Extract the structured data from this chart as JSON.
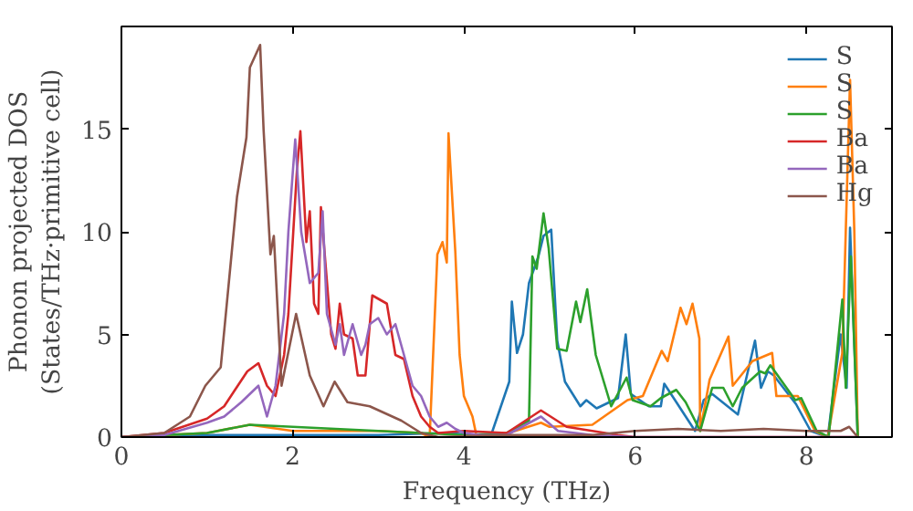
{
  "chart_data": {
    "type": "line",
    "xlabel": "Frequency (THz)",
    "ylabel": "Phonon projected DOS\n(States/THz·primitive cell)",
    "xlim": [
      0,
      9
    ],
    "ylim": [
      0,
      20
    ],
    "xticks": [
      0,
      2,
      4,
      6,
      8
    ],
    "yticks": [
      0,
      5,
      10,
      15
    ],
    "legend": "top right",
    "grid": false,
    "series": [
      {
        "name": "S",
        "color": "#1f77b4",
        "x": [
          0,
          1,
          2,
          3,
          3.8,
          4.1,
          4.31,
          4.53,
          4.56,
          4.62,
          4.69,
          4.76,
          4.87,
          4.93,
          5.02,
          5.09,
          5.18,
          5.36,
          5.43,
          5.55,
          5.8,
          5.89,
          5.95,
          6.16,
          6.3,
          6.34,
          6.45,
          6.7,
          6.8,
          6.9,
          7.2,
          7.4,
          7.47,
          7.55,
          7.62,
          7.88,
          8.05,
          8.25,
          8.4,
          8.47,
          8.51,
          8.6
        ],
        "values": [
          0,
          0.1,
          0.1,
          0.1,
          0.2,
          0.1,
          0,
          2.7,
          6.6,
          4.1,
          5,
          7.5,
          8.8,
          9.8,
          10.1,
          4.7,
          2.7,
          1.5,
          1.8,
          1.4,
          1.9,
          5,
          2.1,
          1.5,
          1.5,
          2.6,
          1.9,
          0.3,
          1.8,
          2.1,
          1.1,
          4.7,
          2.4,
          3.2,
          3.0,
          1.6,
          0.3,
          0,
          5,
          2.4,
          10.2,
          0
        ]
      },
      {
        "name": "S",
        "color": "#ff7f0e",
        "x": [
          0,
          1,
          1.5,
          2,
          2.5,
          3,
          3.5,
          3.6,
          3.69,
          3.75,
          3.8,
          3.82,
          3.9,
          3.95,
          4.0,
          4.1,
          4.15,
          4.3,
          4.6,
          4.9,
          5.0,
          5.5,
          5.91,
          6.09,
          6.31,
          6.38,
          6.53,
          6.6,
          6.67,
          6.75,
          6.76,
          6.87,
          7.09,
          7.14,
          7.37,
          7.6,
          7.65,
          7.9,
          8.1,
          8.25,
          8.42,
          8.51,
          8.56,
          8.6
        ],
        "values": [
          0,
          0.2,
          0.6,
          0.3,
          0.3,
          0.3,
          0.2,
          0,
          8.9,
          9.5,
          8.5,
          14.8,
          9,
          4,
          2,
          1,
          0,
          0,
          0.3,
          0.7,
          0.5,
          0.6,
          1.8,
          2,
          4.2,
          3.7,
          6.3,
          5.5,
          6.5,
          4.8,
          0.3,
          2.8,
          4.9,
          2.5,
          3.7,
          4.1,
          2.0,
          2,
          0.3,
          0,
          4.1,
          17.4,
          10,
          0
        ]
      },
      {
        "name": "S",
        "color": "#2ca02c",
        "x": [
          0,
          1,
          1.5,
          2,
          2.5,
          3,
          3.5,
          4,
          4.5,
          4.76,
          4.8,
          4.85,
          4.93,
          4.99,
          5.09,
          5.2,
          5.31,
          5.36,
          5.44,
          5.54,
          5.72,
          5.9,
          5.97,
          6.18,
          6.3,
          6.48,
          6.59,
          6.76,
          6.9,
          7.03,
          7.14,
          7.25,
          7.46,
          7.52,
          7.58,
          7.87,
          7.94,
          8.12,
          8.26,
          8.42,
          8.46,
          8.52,
          8.6
        ],
        "values": [
          0,
          0.2,
          0.6,
          0.5,
          0.4,
          0.3,
          0.2,
          0.1,
          0.2,
          0.8,
          8.8,
          8.2,
          10.9,
          9.2,
          4.3,
          4.2,
          6.6,
          5.6,
          7.2,
          4,
          1.5,
          2.9,
          1.8,
          1.5,
          1.9,
          2.3,
          1.7,
          0.3,
          2.4,
          2.4,
          1.5,
          2.4,
          3.2,
          3.1,
          3.5,
          1.8,
          1.9,
          0.3,
          0,
          6.7,
          2.4,
          8.8,
          0
        ]
      },
      {
        "name": "Ba",
        "color": "#d62728",
        "x": [
          0,
          0.5,
          1.0,
          1.2,
          1.47,
          1.6,
          1.7,
          1.8,
          1.9,
          1.95,
          2.05,
          2.09,
          2.16,
          2.2,
          2.25,
          2.3,
          2.33,
          2.45,
          2.5,
          2.55,
          2.6,
          2.7,
          2.76,
          2.85,
          2.93,
          3.1,
          3.2,
          3.3,
          3.4,
          3.5,
          3.6,
          3.7,
          4.0,
          4.5,
          4.9,
          5.2,
          5.5,
          5.8,
          6.0,
          8.6
        ],
        "values": [
          0,
          0.2,
          0.9,
          1.5,
          3.2,
          3.6,
          2.5,
          2,
          4,
          6,
          13,
          14.9,
          9.5,
          11,
          6.5,
          6,
          11.2,
          5,
          4.3,
          6.5,
          5,
          4.8,
          3,
          3,
          6.9,
          6.5,
          4,
          3.8,
          2,
          1,
          0.5,
          0.2,
          0.3,
          0.2,
          1.3,
          0.5,
          0.3,
          0.1,
          0,
          0
        ]
      },
      {
        "name": "Ba",
        "color": "#9467bd",
        "x": [
          0,
          0.5,
          1.0,
          1.2,
          1.4,
          1.6,
          1.7,
          1.8,
          1.9,
          1.95,
          2.03,
          2.1,
          2.2,
          2.3,
          2.35,
          2.4,
          2.5,
          2.55,
          2.6,
          2.7,
          2.8,
          2.85,
          2.9,
          3.0,
          3.1,
          3.2,
          3.3,
          3.4,
          3.5,
          3.6,
          3.7,
          3.8,
          3.9,
          4.0,
          4.2,
          4.5,
          4.9,
          5.1,
          5.5,
          6.0,
          8.6
        ],
        "values": [
          0,
          0.1,
          0.7,
          1,
          1.7,
          2.5,
          1,
          2.5,
          6,
          10,
          14.5,
          10,
          7.5,
          8,
          11,
          6,
          4.5,
          5.5,
          4,
          5.5,
          4,
          4.5,
          5.5,
          5.8,
          5.0,
          5.5,
          4,
          2.5,
          2,
          1,
          0.5,
          0.7,
          0.4,
          0.2,
          0.1,
          0.1,
          1,
          0.3,
          0.1,
          0,
          0
        ]
      },
      {
        "name": "Hg",
        "color": "#8c564b",
        "x": [
          0,
          0.5,
          0.8,
          0.98,
          1.16,
          1.35,
          1.46,
          1.5,
          1.62,
          1.66,
          1.74,
          1.78,
          1.87,
          2.04,
          2.2,
          2.36,
          2.49,
          2.64,
          2.9,
          3.27,
          3.5,
          3.7,
          4.5,
          5.5,
          6.0,
          6.5,
          7.0,
          7.5,
          8.0,
          8.4,
          8.5,
          8.6
        ],
        "values": [
          0,
          0.2,
          1,
          2.5,
          3.4,
          11.7,
          14.6,
          18,
          19.1,
          15,
          8.9,
          9.8,
          2.5,
          6.0,
          3,
          1.5,
          2.7,
          1.7,
          1.5,
          0.8,
          0.2,
          0,
          0.1,
          0.1,
          0.3,
          0.4,
          0.3,
          0.4,
          0.3,
          0.3,
          0.5,
          0
        ]
      }
    ]
  }
}
